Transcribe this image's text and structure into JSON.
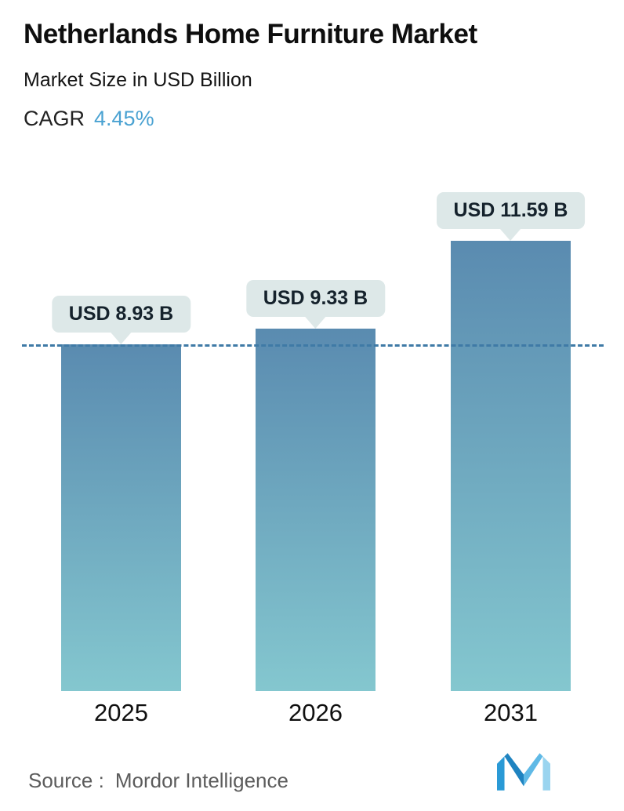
{
  "header": {
    "title": "Netherlands Home Furniture Market",
    "subtitle": "Market Size in USD Billion",
    "cagr_label": "CAGR",
    "cagr_value": "4.45%"
  },
  "chart_data": {
    "type": "bar",
    "title": "Netherlands Home Furniture Market",
    "subtitle": "Market Size in USD Billion",
    "cagr_percent": 4.45,
    "categories": [
      "2025",
      "2026",
      "2031"
    ],
    "values": [
      8.93,
      9.33,
      11.59
    ],
    "value_labels": [
      "USD 8.93 B",
      "USD 9.33 B",
      "USD 11.59 B"
    ],
    "unit": "USD Billion",
    "reference_line_value": 8.93,
    "ylim": [
      0,
      12
    ],
    "grid": false,
    "legend": false
  },
  "footer": {
    "source_label": "Source :",
    "source_value": "Mordor Intelligence",
    "logo_icon": "mordor-intelligence-logo"
  },
  "colors": {
    "cagr_accent": "#4aa2d2",
    "bar_gradient_top": "#5a8bb0",
    "bar_gradient_bottom": "#84c7cf",
    "label_pill_bg": "#dde8e8",
    "reference_line": "#3f7aa6",
    "title_text": "#0e0e0e",
    "source_text": "#5c5c5c",
    "logo_blue_dark": "#1f83c0",
    "logo_blue_mid": "#2a9ad6",
    "logo_blue_light": "#9ad4ef"
  }
}
